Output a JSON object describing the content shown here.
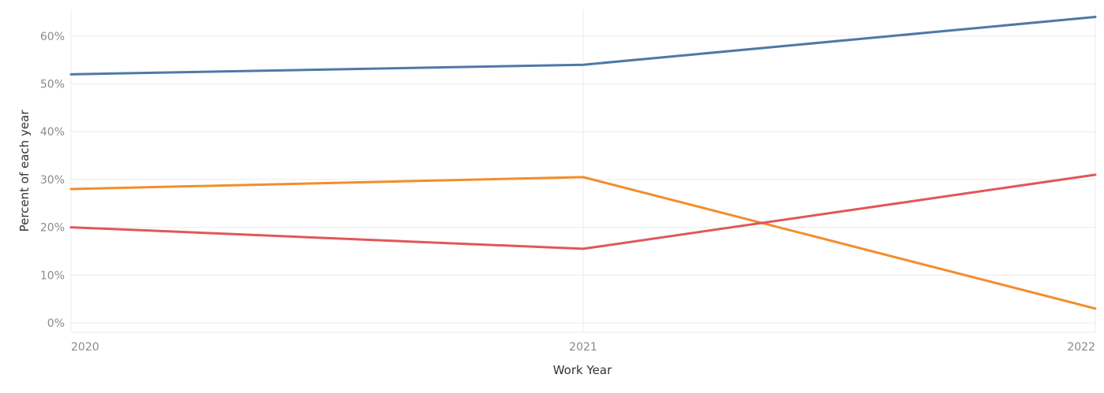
{
  "chart_data": {
    "type": "line",
    "categories": [
      "2020",
      "2021",
      "2022"
    ],
    "x": [
      2020,
      2021,
      2022
    ],
    "xlabel": "Work Year",
    "ylabel": "Percent of each year",
    "ylim": [
      -0.02,
      0.66
    ],
    "yticks": [
      0,
      0.1,
      0.2,
      0.3,
      0.4,
      0.5,
      0.6
    ],
    "yticklabels": [
      "0%",
      "10%",
      "20%",
      "30%",
      "40%",
      "50%",
      "60%"
    ],
    "grid": true,
    "series": [
      {
        "color": "#4e79a7",
        "values": [
          0.52,
          0.54,
          0.64
        ]
      },
      {
        "color": "#f28e2b",
        "values": [
          0.28,
          0.305,
          0.03
        ]
      },
      {
        "color": "#e15759",
        "values": [
          0.2,
          0.155,
          0.31
        ]
      }
    ]
  }
}
